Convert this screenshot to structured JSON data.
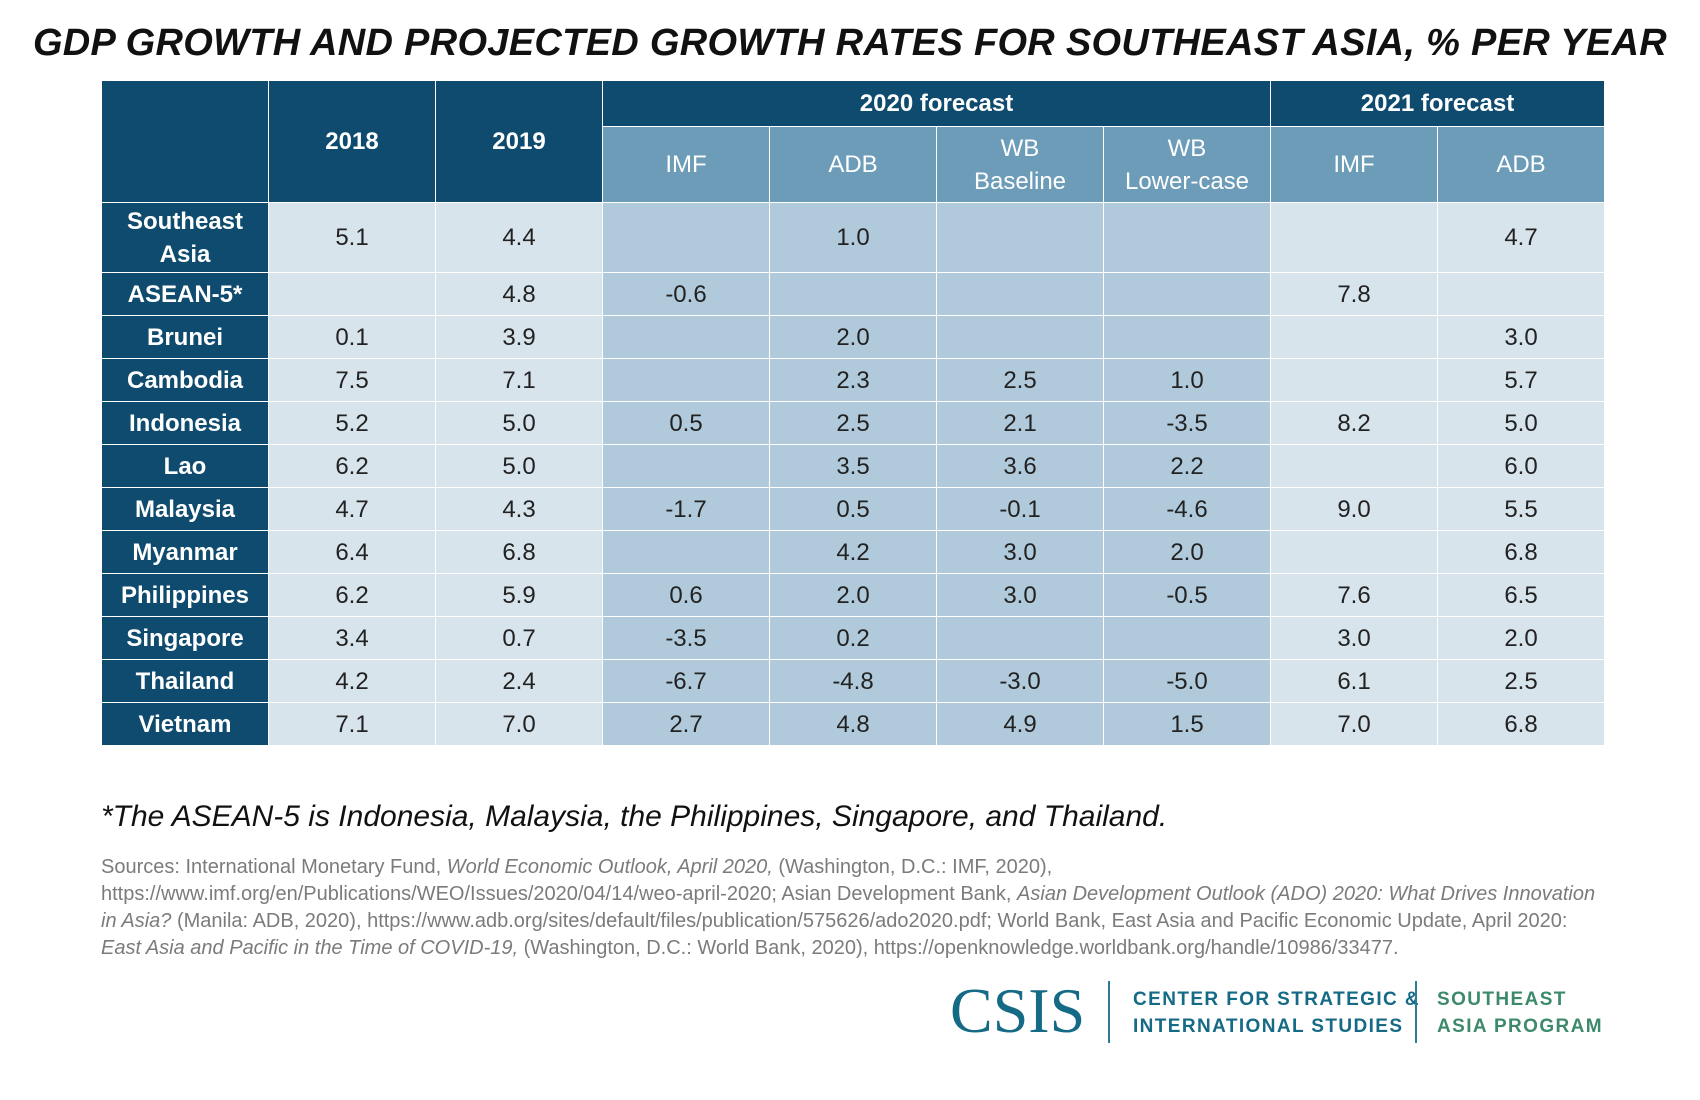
{
  "title": "GDP GROWTH AND PROJECTED GROWTH RATES FOR SOUTHEAST ASIA, % PER YEAR",
  "table": {
    "group_headers": [
      "2020 forecast",
      "2021 forecast"
    ],
    "year_headers": [
      "2018",
      "2019"
    ],
    "sub_headers_2020": [
      [
        "IMF"
      ],
      [
        "ADB"
      ],
      [
        "WB",
        "Baseline"
      ],
      [
        "WB",
        "Lower-case"
      ]
    ],
    "sub_headers_2021": [
      [
        "IMF"
      ],
      [
        "ADB"
      ]
    ]
  },
  "chart_data": {
    "type": "table",
    "title": "GDP GROWTH AND PROJECTED GROWTH RATES FOR SOUTHEAST ASIA, % PER YEAR",
    "columns": [
      "2018",
      "2019",
      "2020 forecast IMF",
      "2020 forecast ADB",
      "2020 forecast WB Baseline",
      "2020 forecast WB Lower-case",
      "2021 forecast IMF",
      "2021 forecast ADB"
    ],
    "rows": [
      {
        "name": [
          "Southeast",
          "Asia"
        ],
        "values": [
          "5.1",
          "4.4",
          "",
          "1.0",
          "",
          "",
          "",
          "4.7"
        ]
      },
      {
        "name": [
          "ASEAN-5*"
        ],
        "values": [
          "",
          "4.8",
          "-0.6",
          "",
          "",
          "",
          "7.8",
          ""
        ]
      },
      {
        "name": [
          "Brunei"
        ],
        "values": [
          "0.1",
          "3.9",
          "",
          "2.0",
          "",
          "",
          "",
          "3.0"
        ]
      },
      {
        "name": [
          "Cambodia"
        ],
        "values": [
          "7.5",
          "7.1",
          "",
          "2.3",
          "2.5",
          "1.0",
          "",
          "5.7"
        ]
      },
      {
        "name": [
          "Indonesia"
        ],
        "values": [
          "5.2",
          "5.0",
          "0.5",
          "2.5",
          "2.1",
          "-3.5",
          "8.2",
          "5.0"
        ]
      },
      {
        "name": [
          "Lao"
        ],
        "values": [
          "6.2",
          "5.0",
          "",
          "3.5",
          "3.6",
          "2.2",
          "",
          "6.0"
        ]
      },
      {
        "name": [
          "Malaysia"
        ],
        "values": [
          "4.7",
          "4.3",
          "-1.7",
          "0.5",
          "-0.1",
          "-4.6",
          "9.0",
          "5.5"
        ]
      },
      {
        "name": [
          "Myanmar"
        ],
        "values": [
          "6.4",
          "6.8",
          "",
          "4.2",
          "3.0",
          "2.0",
          "",
          "6.8"
        ]
      },
      {
        "name": [
          "Philippines"
        ],
        "values": [
          "6.2",
          "5.9",
          "0.6",
          "2.0",
          "3.0",
          "-0.5",
          "7.6",
          "6.5"
        ]
      },
      {
        "name": [
          "Singapore"
        ],
        "values": [
          "3.4",
          "0.7",
          "-3.5",
          "0.2",
          "",
          "",
          "3.0",
          "2.0"
        ]
      },
      {
        "name": [
          "Thailand"
        ],
        "values": [
          "4.2",
          "2.4",
          "-6.7",
          "-4.8",
          "-3.0",
          "-5.0",
          "6.1",
          "2.5"
        ]
      },
      {
        "name": [
          "Vietnam"
        ],
        "values": [
          "7.1",
          "7.0",
          "2.7",
          "4.8",
          "4.9",
          "1.5",
          "7.0",
          "6.8"
        ]
      }
    ]
  },
  "note": "*The ASEAN-5 is Indonesia, Malaysia, the Philippines, Singapore, and Thailand.",
  "sources": [
    {
      "text": "Sources: International Monetary Fund, "
    },
    {
      "text": "World Economic Outlook, April 2020,",
      "italic": true
    },
    {
      "text": " (Washington, D.C.: IMF, 2020), https://www.imf.org/en/Publications/WEO/Issues/2020/04/14/weo-april-2020; Asian Development Bank, "
    },
    {
      "text": "Asian Development Outlook (ADO) 2020: What Drives Innovation in Asia?",
      "italic": true
    },
    {
      "text": " (Manila: ADB, 2020), https://www.adb.org/sites/default/files/publication/575626/ado2020.pdf; World Bank, East Asia and Pacific Economic Update, April 2020: "
    },
    {
      "text": "East Asia and Pacific in the Time of COVID-19,",
      "italic": true
    },
    {
      "text": " (Washington, D.C.: World Bank, 2020), https://openknowledge.worldbank.org/handle/10986/33477."
    }
  ],
  "logo": {
    "name": "CSIS",
    "org_lines": [
      "CENTER FOR STRATEGIC &",
      "INTERNATIONAL STUDIES"
    ],
    "program_lines": [
      "SOUTHEAST",
      "ASIA PROGRAM"
    ]
  },
  "colors": {
    "header_dark": "#0f4b6e",
    "header_mid": "#6c9cb8",
    "cell_light": "#d7e4ec",
    "cell_forecast_2020": "#b1cadb",
    "brand": "#156a86",
    "program": "#3d8a6a"
  }
}
